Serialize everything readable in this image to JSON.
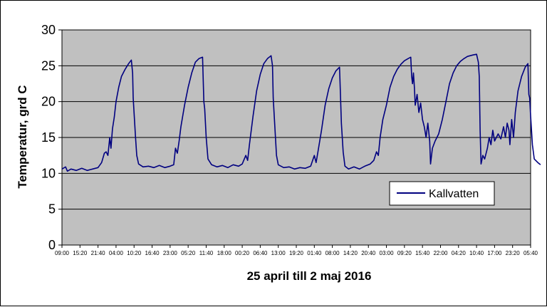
{
  "colors": {
    "plot_background": "#c0c0c0",
    "series_line": "#000080",
    "gridline": "#000000",
    "frame": "#000000"
  },
  "chart_data": {
    "type": "line",
    "title": "",
    "xlabel": "25 april till 2 maj 2016",
    "ylabel": "Temperatur, grd C",
    "ylim": [
      0,
      30
    ],
    "yticks": [
      0,
      5,
      10,
      15,
      20,
      25,
      30
    ],
    "grid": "horizontal",
    "legend": {
      "position": "right-middle",
      "entries": [
        "Kallvatten"
      ]
    },
    "x_tick_labels": [
      "09:00",
      "15:20",
      "21:40",
      "04:00",
      "10:20",
      "16:40",
      "23:00",
      "05:20",
      "11:40",
      "18:00",
      "00:20",
      "06:40",
      "13:00",
      "19:20",
      "01:40",
      "08:00",
      "14:20",
      "20:40",
      "03:00",
      "09:20",
      "15:40",
      "22:00",
      "04:20",
      "10:40",
      "17:00",
      "23:20",
      "05:40"
    ],
    "series": [
      {
        "name": "Kallvatten",
        "color": "#000080",
        "points": [
          [
            0,
            10.6
          ],
          [
            0.2,
            10.9
          ],
          [
            0.3,
            10.3
          ],
          [
            0.5,
            10.6
          ],
          [
            0.8,
            10.4
          ],
          [
            1.1,
            10.7
          ],
          [
            1.4,
            10.4
          ],
          [
            1.7,
            10.6
          ],
          [
            2.0,
            10.8
          ],
          [
            2.2,
            11.5
          ],
          [
            2.35,
            12.8
          ],
          [
            2.45,
            13.0
          ],
          [
            2.55,
            12.5
          ],
          [
            2.65,
            15.0
          ],
          [
            2.72,
            13.5
          ],
          [
            2.8,
            16.2
          ],
          [
            2.9,
            17.8
          ],
          [
            3.0,
            20.0
          ],
          [
            3.15,
            22.0
          ],
          [
            3.3,
            23.5
          ],
          [
            3.5,
            24.5
          ],
          [
            3.7,
            25.3
          ],
          [
            3.85,
            25.8
          ],
          [
            3.92,
            24.0
          ],
          [
            3.95,
            20.5
          ],
          [
            4.0,
            18.5
          ],
          [
            4.08,
            15.0
          ],
          [
            4.15,
            12.5
          ],
          [
            4.25,
            11.3
          ],
          [
            4.5,
            10.9
          ],
          [
            4.8,
            11.0
          ],
          [
            5.1,
            10.8
          ],
          [
            5.4,
            11.1
          ],
          [
            5.7,
            10.8
          ],
          [
            6.0,
            11.0
          ],
          [
            6.2,
            11.2
          ],
          [
            6.3,
            13.5
          ],
          [
            6.4,
            12.8
          ],
          [
            6.5,
            14.5
          ],
          [
            6.6,
            16.5
          ],
          [
            6.8,
            19.5
          ],
          [
            7.0,
            22.0
          ],
          [
            7.2,
            24.0
          ],
          [
            7.4,
            25.5
          ],
          [
            7.6,
            26.0
          ],
          [
            7.8,
            26.2
          ],
          [
            7.87,
            20.0
          ],
          [
            7.92,
            19.0
          ],
          [
            8.0,
            15.0
          ],
          [
            8.1,
            12.0
          ],
          [
            8.3,
            11.2
          ],
          [
            8.6,
            10.9
          ],
          [
            8.9,
            11.1
          ],
          [
            9.2,
            10.8
          ],
          [
            9.5,
            11.2
          ],
          [
            9.8,
            11.0
          ],
          [
            10.0,
            11.3
          ],
          [
            10.2,
            12.5
          ],
          [
            10.3,
            11.8
          ],
          [
            10.4,
            14.0
          ],
          [
            10.6,
            18.0
          ],
          [
            10.8,
            21.5
          ],
          [
            11.0,
            23.8
          ],
          [
            11.2,
            25.3
          ],
          [
            11.4,
            26.0
          ],
          [
            11.6,
            26.4
          ],
          [
            11.68,
            25.0
          ],
          [
            11.72,
            20.5
          ],
          [
            11.8,
            17.0
          ],
          [
            11.9,
            12.5
          ],
          [
            12.0,
            11.2
          ],
          [
            12.3,
            10.8
          ],
          [
            12.6,
            10.9
          ],
          [
            12.9,
            10.6
          ],
          [
            13.2,
            10.8
          ],
          [
            13.5,
            10.7
          ],
          [
            13.8,
            11.0
          ],
          [
            14.0,
            12.5
          ],
          [
            14.1,
            11.5
          ],
          [
            14.2,
            13.0
          ],
          [
            14.4,
            16.0
          ],
          [
            14.6,
            19.5
          ],
          [
            14.8,
            21.8
          ],
          [
            15.0,
            23.3
          ],
          [
            15.2,
            24.3
          ],
          [
            15.4,
            24.8
          ],
          [
            15.45,
            21.0
          ],
          [
            15.5,
            17.0
          ],
          [
            15.6,
            13.0
          ],
          [
            15.7,
            11.0
          ],
          [
            15.9,
            10.6
          ],
          [
            16.2,
            10.9
          ],
          [
            16.5,
            10.6
          ],
          [
            16.8,
            11.0
          ],
          [
            17.1,
            11.3
          ],
          [
            17.3,
            11.8
          ],
          [
            17.45,
            13.0
          ],
          [
            17.55,
            12.5
          ],
          [
            17.65,
            15.0
          ],
          [
            17.8,
            17.5
          ],
          [
            18.0,
            19.5
          ],
          [
            18.2,
            22.0
          ],
          [
            18.4,
            23.5
          ],
          [
            18.6,
            24.5
          ],
          [
            18.8,
            25.2
          ],
          [
            19.0,
            25.7
          ],
          [
            19.2,
            26.0
          ],
          [
            19.35,
            26.2
          ],
          [
            19.4,
            23.5
          ],
          [
            19.45,
            22.5
          ],
          [
            19.5,
            24.0
          ],
          [
            19.55,
            22.0
          ],
          [
            19.6,
            19.5
          ],
          [
            19.7,
            21.0
          ],
          [
            19.8,
            18.5
          ],
          [
            19.9,
            19.8
          ],
          [
            20.0,
            17.5
          ],
          [
            20.1,
            16.5
          ],
          [
            20.2,
            15.0
          ],
          [
            20.3,
            17.0
          ],
          [
            20.4,
            14.5
          ],
          [
            20.45,
            11.3
          ],
          [
            20.55,
            13.5
          ],
          [
            20.7,
            14.5
          ],
          [
            20.9,
            15.5
          ],
          [
            21.1,
            17.5
          ],
          [
            21.3,
            20.0
          ],
          [
            21.5,
            22.5
          ],
          [
            21.7,
            24.0
          ],
          [
            21.9,
            25.0
          ],
          [
            22.1,
            25.6
          ],
          [
            22.3,
            26.0
          ],
          [
            22.5,
            26.3
          ],
          [
            22.8,
            26.5
          ],
          [
            23.0,
            26.6
          ],
          [
            23.1,
            25.5
          ],
          [
            23.15,
            23.5
          ],
          [
            23.2,
            16.0
          ],
          [
            23.25,
            11.3
          ],
          [
            23.35,
            12.5
          ],
          [
            23.45,
            12.0
          ],
          [
            23.6,
            13.5
          ],
          [
            23.7,
            15.0
          ],
          [
            23.8,
            14.0
          ],
          [
            23.9,
            16.0
          ],
          [
            24.0,
            14.5
          ],
          [
            24.2,
            15.5
          ],
          [
            24.35,
            14.8
          ],
          [
            24.5,
            16.5
          ],
          [
            24.6,
            15.0
          ],
          [
            24.7,
            17.0
          ],
          [
            24.8,
            16.0
          ],
          [
            24.85,
            14.0
          ],
          [
            24.95,
            17.5
          ],
          [
            25.05,
            15.0
          ],
          [
            25.15,
            18.5
          ],
          [
            25.3,
            21.5
          ],
          [
            25.5,
            23.5
          ],
          [
            25.7,
            24.8
          ],
          [
            25.85,
            25.3
          ],
          [
            25.9,
            21.0
          ],
          [
            25.95,
            20.5
          ],
          [
            26.0,
            18.0
          ],
          [
            26.1,
            14.0
          ],
          [
            26.2,
            12.0
          ],
          [
            26.4,
            11.5
          ],
          [
            26.55,
            11.2
          ]
        ]
      }
    ]
  }
}
